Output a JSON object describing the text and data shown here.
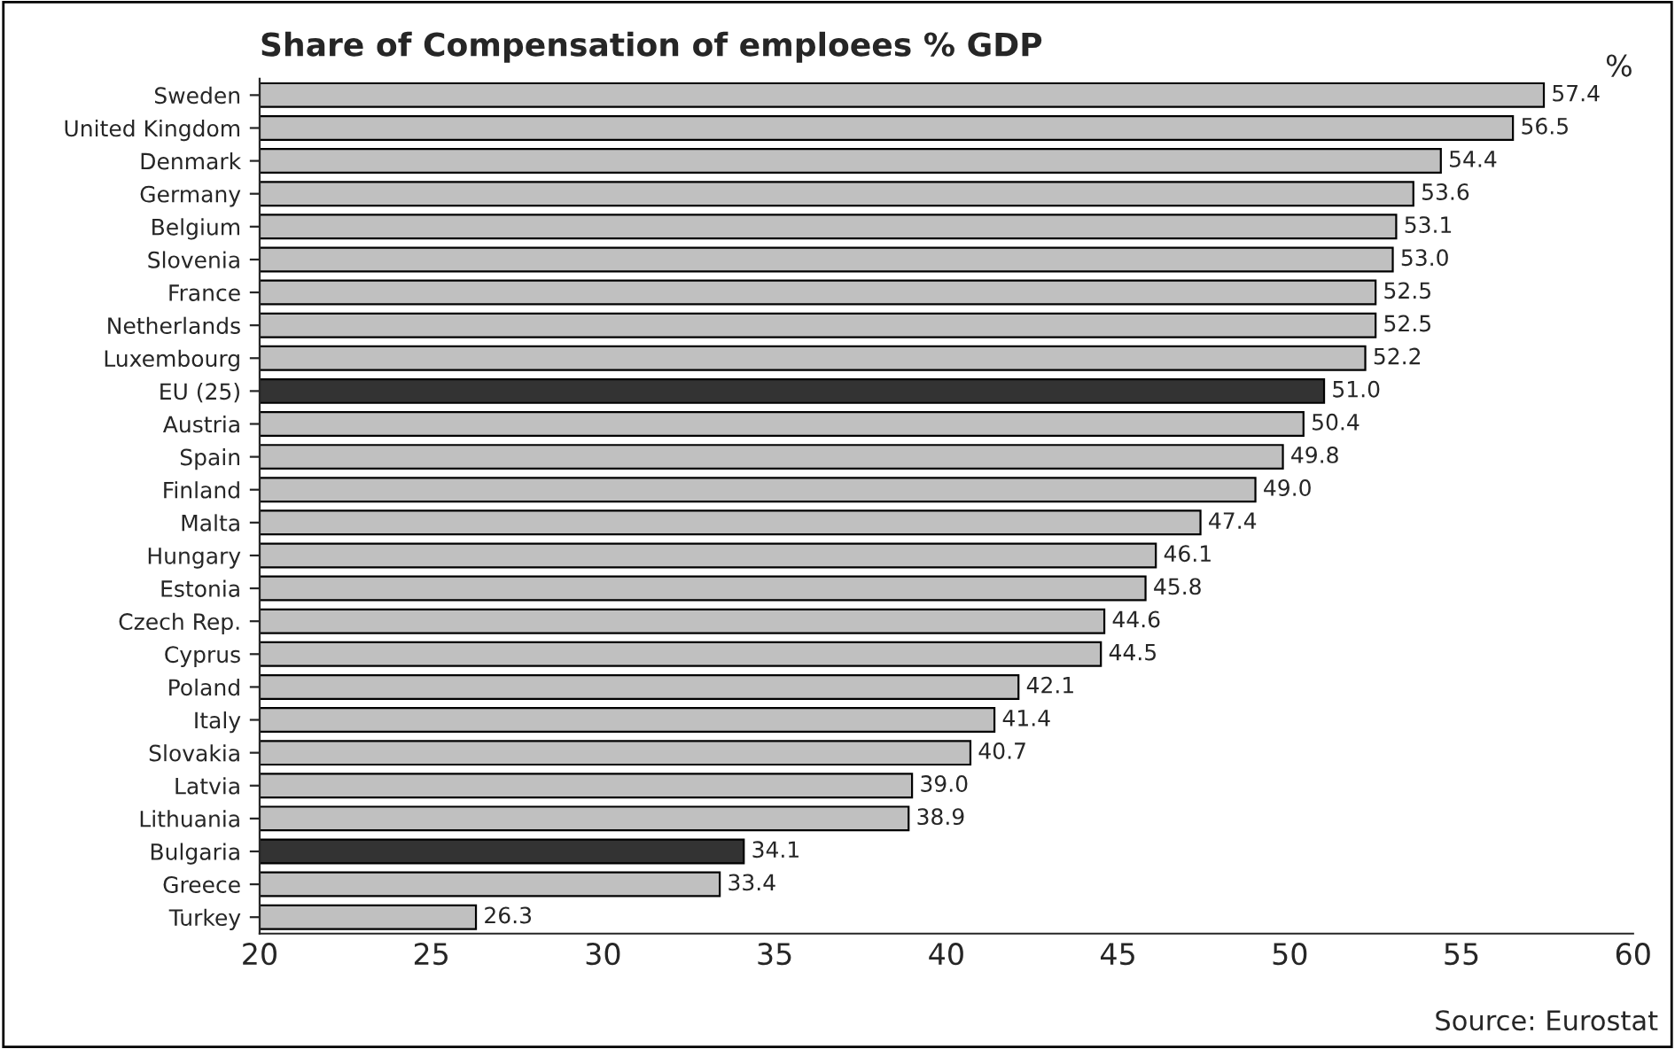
{
  "chart_data": {
    "type": "bar",
    "orientation": "horizontal",
    "title": "Share of Compensation of emploees % GDP",
    "categories": [
      "Sweden",
      "United Kingdom",
      "Denmark",
      "Germany",
      "Belgium",
      "Slovenia",
      "France",
      "Netherlands",
      "Luxembourg",
      "EU (25)",
      "Austria",
      "Spain",
      "Finland",
      "Malta",
      "Hungary",
      "Estonia",
      "Czech Rep.",
      "Cyprus",
      "Poland",
      "Italy",
      "Slovakia",
      "Latvia",
      "Lithuania",
      "Bulgaria",
      "Greece",
      "Turkey"
    ],
    "values": [
      57.4,
      56.5,
      54.4,
      53.6,
      53.1,
      53.0,
      52.5,
      52.5,
      52.2,
      51.0,
      50.4,
      49.8,
      49.0,
      47.4,
      46.1,
      45.8,
      44.6,
      44.5,
      42.1,
      41.4,
      40.7,
      39.0,
      38.9,
      34.1,
      33.4,
      26.3
    ],
    "value_labels": [
      "57.4",
      "56.5",
      "54.4",
      "53.6",
      "53.1",
      "53.0",
      "52.5",
      "52.5",
      "52.2",
      "51.0",
      "50.4",
      "49.8",
      "49.0",
      "47.4",
      "46.1",
      "45.8",
      "44.6",
      "44.5",
      "42.1",
      "41.4",
      "40.7",
      "39.0",
      "38.9",
      "34.1",
      "33.4",
      "26.3"
    ],
    "colors": [
      "#c0c0c0",
      "#c0c0c0",
      "#c0c0c0",
      "#c0c0c0",
      "#c0c0c0",
      "#c0c0c0",
      "#c0c0c0",
      "#c0c0c0",
      "#c0c0c0",
      "#333333",
      "#c0c0c0",
      "#c0c0c0",
      "#c0c0c0",
      "#c0c0c0",
      "#c0c0c0",
      "#c0c0c0",
      "#c0c0c0",
      "#c0c0c0",
      "#c0c0c0",
      "#c0c0c0",
      "#c0c0c0",
      "#c0c0c0",
      "#c0c0c0",
      "#333333",
      "#c0c0c0",
      "#c0c0c0"
    ],
    "xlim": [
      20,
      60
    ],
    "xticks": [
      20,
      25,
      30,
      35,
      40,
      45,
      50,
      55,
      60
    ],
    "grid": false,
    "legend": false,
    "annotations": [
      "%",
      "Source: Eurostat"
    ]
  }
}
